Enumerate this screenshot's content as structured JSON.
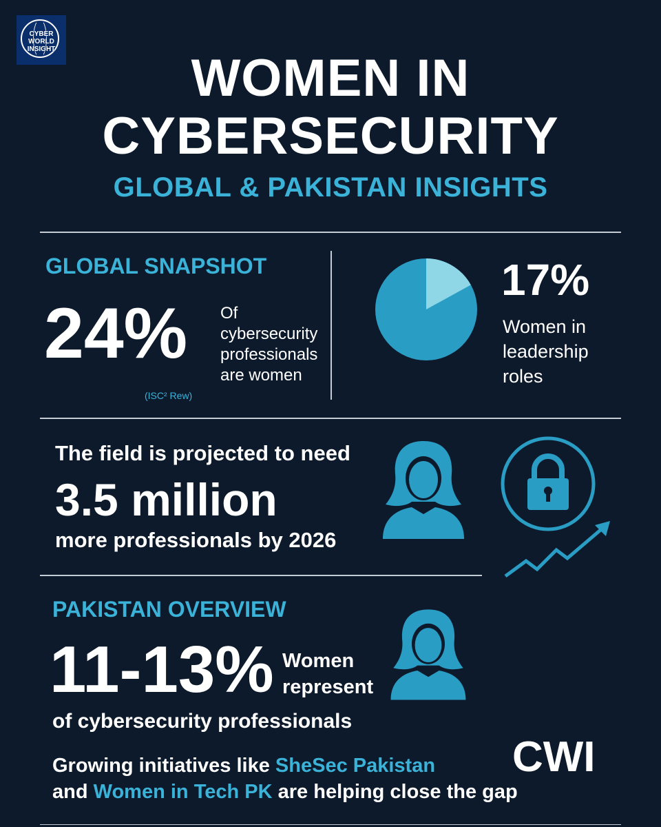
{
  "logo": {
    "text_line1": "CYBER",
    "text_line2": "WORLD",
    "text_line3": "INSIGHT"
  },
  "header": {
    "title_line1": "WOMEN IN",
    "title_line2": "CYBERSECURITY",
    "subtitle": "GLOBAL & PAKISTAN INSIGHTS"
  },
  "global": {
    "heading": "GLOBAL SNAPSHOT",
    "stat": "24%",
    "desc_line1": "Of",
    "desc_line2": "cybersecurity",
    "desc_line3": "professionals",
    "desc_line4": "are women",
    "source": "(ISC² Rew)"
  },
  "leadership": {
    "stat": "17%",
    "stat_value": 17,
    "desc_line1": "Women in",
    "desc_line2": "leadership",
    "desc_line3": "roles"
  },
  "demand": {
    "line1": "The field is projected to need",
    "big": "3.5 million",
    "line3": "more professionals by 2026"
  },
  "pakistan": {
    "heading": "PAKISTAN OVERVIEW",
    "stat": "11-13%",
    "desc_line1": "Women",
    "desc_line2": "represent",
    "desc_line3": "of cybersecurity professionals",
    "init_pre": "Growing initiatives like ",
    "init_org1": "SheSec Pakistan",
    "init_mid": "and ",
    "init_org2": "Women in Tech PK",
    "init_post": " are helping close the gap"
  },
  "brand": "CWI",
  "icons": [
    "globe-icon",
    "pie-chart-icon",
    "woman-icon",
    "lock-icon",
    "trend-arrow-icon"
  ],
  "colors": {
    "background": "#0d1a2b",
    "accent": "#3bb2d8",
    "pie_main": "#2a9dc4",
    "pie_slice": "#8fd6e6",
    "text": "#ffffff"
  }
}
